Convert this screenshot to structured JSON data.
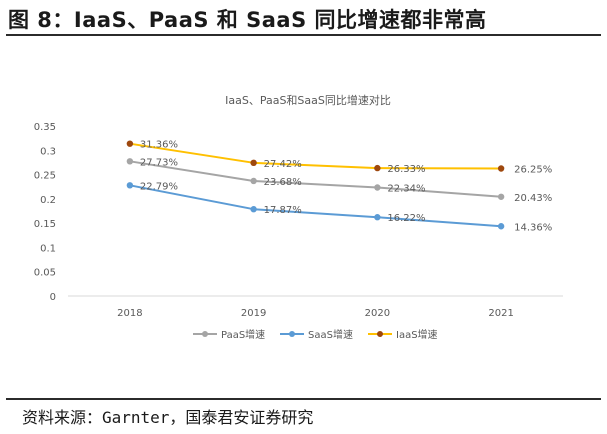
{
  "figure": {
    "title": "图 8：IaaS、PaaS 和 SaaS 同比增速都非常高",
    "source": "资料来源：Garnter，国泰君安证券研究"
  },
  "chart_data": {
    "type": "line",
    "title": "IaaS、PaaS和SaaS同比增速对比",
    "xlabel": "",
    "ylabel": "",
    "categories": [
      "2018",
      "2019",
      "2020",
      "2021"
    ],
    "ylim": [
      0,
      0.35
    ],
    "yticks": [
      "0",
      "0.05",
      "0.1",
      "0.15",
      "0.2",
      "0.25",
      "0.3",
      "0.35"
    ],
    "grid": false,
    "legend_position": "bottom",
    "series": [
      {
        "name": "PaaS增速",
        "color": "#a5a5a5",
        "values": [
          0.2773,
          0.2368,
          0.2234,
          0.2043
        ],
        "labels": [
          "27.73%",
          "23.68%",
          "22.34%",
          "20.43%"
        ]
      },
      {
        "name": "SaaS增速",
        "color": "#5b9bd5",
        "values": [
          0.2279,
          0.1787,
          0.1622,
          0.1436
        ],
        "labels": [
          "22.79%",
          "17.87%",
          "16.22%",
          "14.36%"
        ]
      },
      {
        "name": "IaaS增速",
        "color": "#ffc000",
        "marker_color": "#9e480e",
        "values": [
          0.3136,
          0.2742,
          0.2633,
          0.2625
        ],
        "labels": [
          "31.36%",
          "27.42%",
          "26.33%",
          "26.25%"
        ]
      }
    ]
  }
}
